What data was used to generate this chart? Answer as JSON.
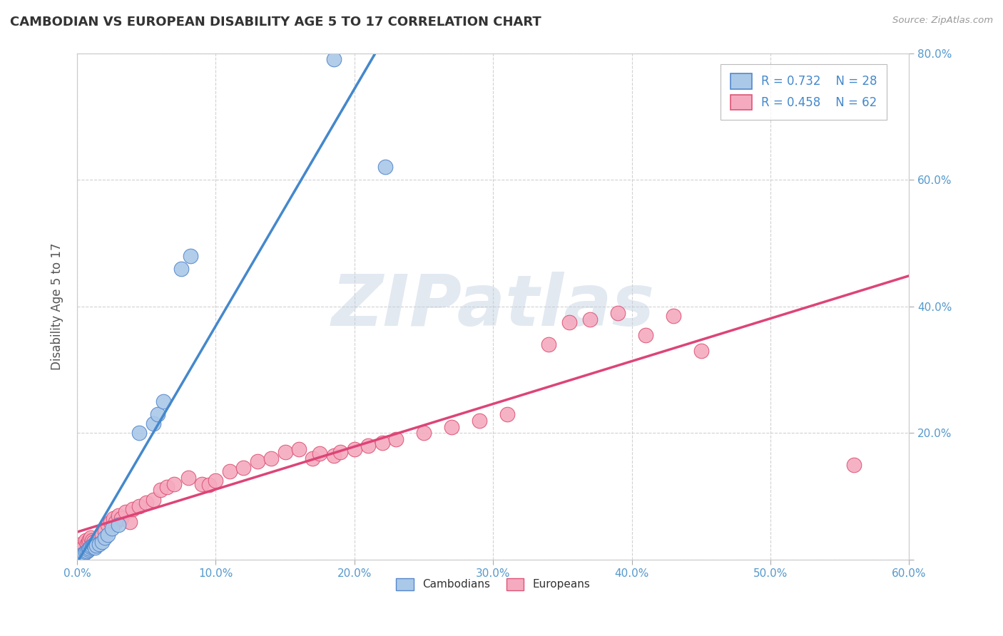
{
  "title": "CAMBODIAN VS EUROPEAN DISABILITY AGE 5 TO 17 CORRELATION CHART",
  "source": "Source: ZipAtlas.com",
  "ylabel": "Disability Age 5 to 17",
  "xlim": [
    0.0,
    0.6
  ],
  "ylim": [
    0.0,
    0.8
  ],
  "xticks": [
    0.0,
    0.1,
    0.2,
    0.3,
    0.4,
    0.5,
    0.6
  ],
  "xtick_labels": [
    "0.0%",
    "10.0%",
    "20.0%",
    "30.0%",
    "40.0%",
    "50.0%",
    "60.0%"
  ],
  "ytick_vals": [
    0.0,
    0.2,
    0.4,
    0.6,
    0.8
  ],
  "ytick_labels": [
    "",
    "20.0%",
    "40.0%",
    "60.0%",
    "80.0%"
  ],
  "cambodian_R": 0.732,
  "cambodian_N": 28,
  "european_R": 0.458,
  "european_N": 62,
  "cambodian_color": "#aac8e8",
  "european_color": "#f5aabf",
  "cambodian_edge_color": "#5588cc",
  "european_edge_color": "#dd5577",
  "cambodian_line_color": "#4488cc",
  "european_line_color": "#dd4477",
  "background_color": "#ffffff",
  "grid_color": "#cccccc",
  "watermark_text": "ZIPatlas",
  "title_color": "#333333",
  "title_fontsize": 13,
  "legend_fontsize": 12,
  "cambodian_x": [
    0.001,
    0.002,
    0.003,
    0.004,
    0.005,
    0.006,
    0.007,
    0.008,
    0.009,
    0.01,
    0.011,
    0.012,
    0.013,
    0.014,
    0.016,
    0.018,
    0.02,
    0.022,
    0.025,
    0.03,
    0.045,
    0.055,
    0.058,
    0.062,
    0.075,
    0.082,
    0.185,
    0.222
  ],
  "cambodian_y": [
    0.004,
    0.005,
    0.007,
    0.009,
    0.01,
    0.012,
    0.014,
    0.016,
    0.018,
    0.02,
    0.022,
    0.024,
    0.019,
    0.023,
    0.025,
    0.028,
    0.035,
    0.04,
    0.05,
    0.055,
    0.2,
    0.215,
    0.23,
    0.25,
    0.46,
    0.48,
    0.79,
    0.62
  ],
  "european_x": [
    0.001,
    0.002,
    0.003,
    0.004,
    0.005,
    0.006,
    0.007,
    0.008,
    0.009,
    0.01,
    0.011,
    0.012,
    0.013,
    0.015,
    0.016,
    0.018,
    0.02,
    0.022,
    0.024,
    0.026,
    0.028,
    0.03,
    0.032,
    0.035,
    0.038,
    0.04,
    0.045,
    0.05,
    0.055,
    0.06,
    0.065,
    0.07,
    0.08,
    0.09,
    0.095,
    0.1,
    0.11,
    0.12,
    0.13,
    0.14,
    0.15,
    0.16,
    0.17,
    0.175,
    0.185,
    0.19,
    0.2,
    0.21,
    0.22,
    0.23,
    0.25,
    0.27,
    0.29,
    0.31,
    0.34,
    0.355,
    0.37,
    0.39,
    0.41,
    0.43,
    0.45,
    0.56
  ],
  "european_y": [
    0.02,
    0.015,
    0.025,
    0.018,
    0.022,
    0.03,
    0.025,
    0.028,
    0.032,
    0.035,
    0.03,
    0.028,
    0.025,
    0.03,
    0.035,
    0.04,
    0.045,
    0.055,
    0.06,
    0.065,
    0.06,
    0.07,
    0.065,
    0.075,
    0.06,
    0.08,
    0.085,
    0.09,
    0.095,
    0.11,
    0.115,
    0.12,
    0.13,
    0.12,
    0.118,
    0.125,
    0.14,
    0.145,
    0.155,
    0.16,
    0.17,
    0.175,
    0.16,
    0.168,
    0.165,
    0.17,
    0.175,
    0.18,
    0.185,
    0.19,
    0.2,
    0.21,
    0.22,
    0.23,
    0.34,
    0.375,
    0.38,
    0.39,
    0.355,
    0.385,
    0.33,
    0.15
  ]
}
